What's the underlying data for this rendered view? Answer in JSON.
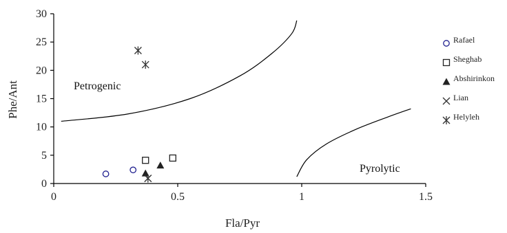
{
  "chart_data": {
    "type": "scatter",
    "title": "",
    "xlabel": "Fla/Pyr",
    "ylabel": "Phe/Ant",
    "xlim": [
      0,
      1.5
    ],
    "ylim": [
      0,
      30
    ],
    "x_ticks": [
      "0",
      "0.5",
      "1",
      "1.5"
    ],
    "y_ticks": [
      "0",
      "5",
      "10",
      "15",
      "20",
      "25",
      "30"
    ],
    "grid": false,
    "legend_position": "right",
    "region_labels": [
      "Petrogenic",
      "Pyrolytic"
    ],
    "boundary_curves": [
      {
        "points": [
          [
            0.03,
            11.0
          ],
          [
            0.3,
            12.3
          ],
          [
            0.55,
            15.0
          ],
          [
            0.75,
            19.0
          ],
          [
            0.88,
            23.0
          ],
          [
            0.96,
            26.5
          ],
          [
            0.98,
            28.8
          ]
        ]
      },
      {
        "points": [
          [
            0.98,
            1.2
          ],
          [
            1.02,
            4.2
          ],
          [
            1.1,
            7.0
          ],
          [
            1.22,
            9.6
          ],
          [
            1.35,
            11.8
          ],
          [
            1.44,
            13.2
          ]
        ]
      }
    ],
    "series": [
      {
        "name": "Rafael",
        "marker": "circle-open",
        "color": "#1f1f8f",
        "points": [
          [
            0.21,
            1.7
          ],
          [
            0.32,
            2.4
          ]
        ]
      },
      {
        "name": "Sheghab",
        "marker": "square-open",
        "color": "#222222",
        "points": [
          [
            0.37,
            4.1
          ],
          [
            0.48,
            4.5
          ]
        ]
      },
      {
        "name": "Abshirinkon",
        "marker": "triangle-filled",
        "color": "#222222",
        "points": [
          [
            0.37,
            1.8
          ],
          [
            0.43,
            3.2
          ]
        ]
      },
      {
        "name": "Lian",
        "marker": "x",
        "color": "#333333",
        "points": [
          [
            0.38,
            0.9
          ]
        ]
      },
      {
        "name": "Helyleh",
        "marker": "asterisk",
        "color": "#333333",
        "points": [
          [
            0.34,
            23.5
          ],
          [
            0.37,
            21.0
          ],
          [
            0.38,
            0.9
          ]
        ]
      }
    ]
  }
}
